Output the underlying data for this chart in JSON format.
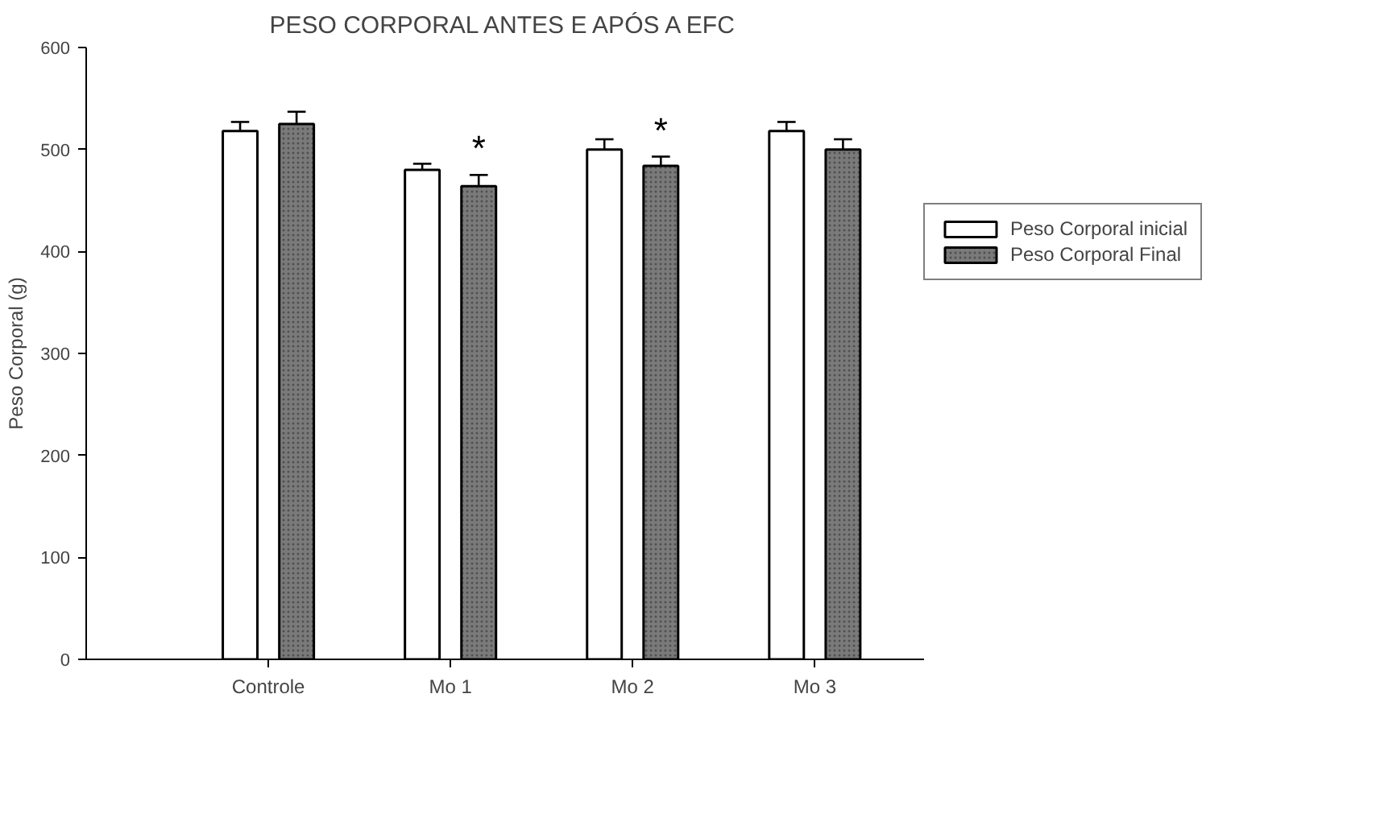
{
  "chart_data": {
    "type": "bar",
    "title": "PESO CORPORAL ANTES E APÓS A EFC",
    "ylabel": "Peso Corporal (g)",
    "categories": [
      "Controle",
      "Mo 1",
      "Mo 2",
      "Mo 3"
    ],
    "series": [
      {
        "name": "Peso Corporal inicial",
        "color": "#ffffff",
        "values": [
          518,
          480,
          500,
          518
        ],
        "errors": [
          [
            518,
            527
          ],
          [
            480,
            486
          ],
          [
            500,
            510
          ],
          [
            518,
            527
          ]
        ]
      },
      {
        "name": "Peso Corporal Final",
        "color": "#7a7a7a",
        "values": [
          525,
          464,
          484,
          500
        ],
        "errors": [
          [
            525,
            537
          ],
          [
            464,
            475
          ],
          [
            484,
            493
          ],
          [
            500,
            510
          ]
        ],
        "value_labels": [
          null,
          "*",
          "*",
          null
        ]
      }
    ],
    "ylim": [
      0,
      600
    ],
    "yticks": [
      0,
      100,
      200,
      300,
      400,
      500,
      600
    ],
    "grid": false,
    "legend": "right"
  }
}
